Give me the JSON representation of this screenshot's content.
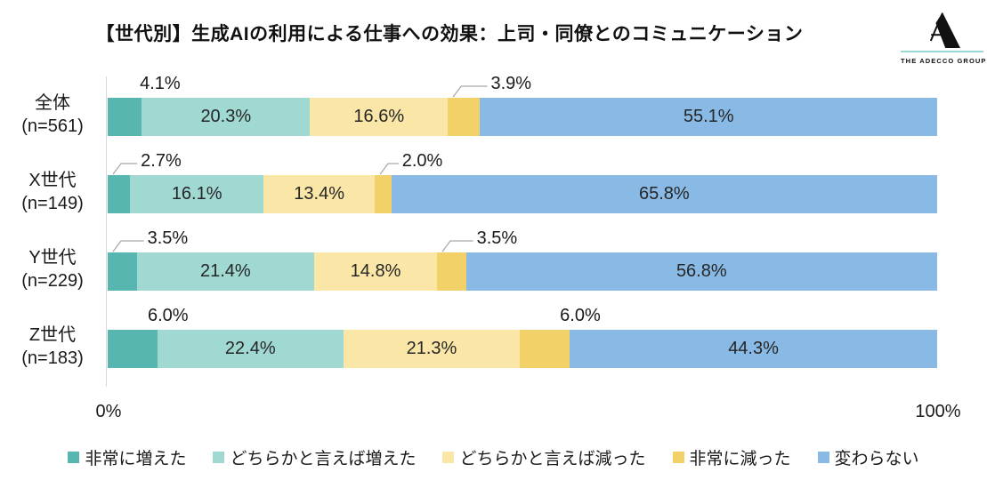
{
  "title": "【世代別】生成AIの利用による仕事への効果：上司・同僚とのコミュニケーション",
  "logo": {
    "text": "THE ADECCO GROUP",
    "line_color": "#9ad8d8",
    "letter_color": "#111111"
  },
  "axis": {
    "min_label": "0%",
    "max_label": "100%"
  },
  "chart_data": {
    "type": "bar",
    "orientation": "horizontal-stacked",
    "unit": "%",
    "xlim": [
      0,
      100
    ],
    "grid": false,
    "legend_position": "bottom",
    "series_names": [
      "非常に増えた",
      "どちらかと言えば増えた",
      "どちらかと言えば減った",
      "非常に減った",
      "変わらない"
    ],
    "series_colors": [
      "#57b6af",
      "#a0d8d2",
      "#fae6a6",
      "#f2d169",
      "#89bae6"
    ],
    "categories": [
      {
        "label": "全体",
        "n_label": "(n=561)",
        "values": [
          4.1,
          20.3,
          16.6,
          3.9,
          55.1
        ]
      },
      {
        "label": "X世代",
        "n_label": "(n=149)",
        "values": [
          2.7,
          16.1,
          13.4,
          2.0,
          65.8
        ]
      },
      {
        "label": "Y世代",
        "n_label": "(n=229)",
        "values": [
          3.5,
          21.4,
          14.8,
          3.5,
          56.8
        ]
      },
      {
        "label": "Z世代",
        "n_label": "(n=183)",
        "values": [
          6.0,
          22.4,
          21.3,
          6.0,
          44.3
        ]
      }
    ],
    "outside_labels": [
      [
        {
          "series": 0,
          "leader": false
        },
        {
          "series": 3,
          "leader": true
        }
      ],
      [
        {
          "series": 0,
          "leader": true
        },
        {
          "series": 3,
          "leader": true
        }
      ],
      [
        {
          "series": 0,
          "leader": true
        },
        {
          "series": 3,
          "leader": true
        }
      ],
      [
        {
          "series": 0,
          "leader": false
        },
        {
          "series": 3,
          "leader": false
        }
      ]
    ],
    "leader_color": "#a6a6a6"
  }
}
